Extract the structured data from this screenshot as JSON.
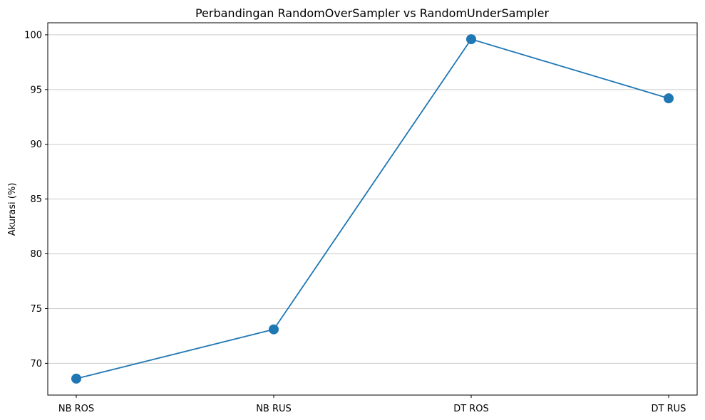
{
  "chart_data": {
    "type": "line",
    "title": "Perbandingan RandomOverSampler vs RandomUnderSampler",
    "xlabel": "",
    "ylabel": "Akurasi (%)",
    "categories": [
      "NB ROS",
      "NB RUS",
      "DT ROS",
      "DT RUS"
    ],
    "series": [
      {
        "values": [
          68.6,
          73.1,
          99.6,
          94.2
        ]
      }
    ],
    "ylim": [
      67.1,
      101.1
    ],
    "yticks": [
      70,
      75,
      80,
      85,
      90,
      95,
      100
    ],
    "grid": "y",
    "colors": {
      "line": "#1f77b4",
      "grid": "#cccccc",
      "axis": "#000000"
    }
  }
}
